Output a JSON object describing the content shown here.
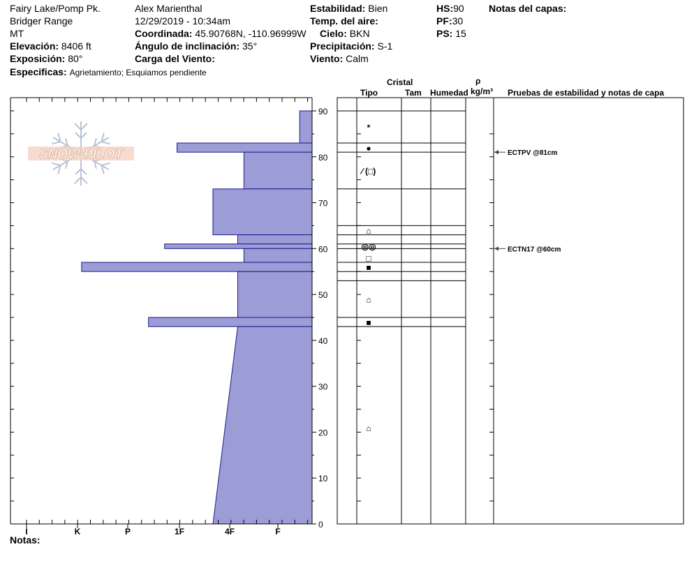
{
  "header": {
    "col1": {
      "location": "Fairy Lake/Pomp Pk.",
      "range": "Bridger Range",
      "state": "MT",
      "elevation_label": "Elevación:",
      "elevation_value": "8406 ft",
      "aspect_label": "Exposición:",
      "aspect_value": "80°",
      "specifics_label": "Especificas:",
      "specifics_value": "Agrietamiento; Esquiamos pendiente"
    },
    "col2": {
      "observer": "Alex Marienthal",
      "datetime": "12/29/2019 - 10:34am",
      "coord_label": "Coordinada:",
      "coord_value": "45.90768N, -110.96999W",
      "slope_label": "Ángulo de inclinación:",
      "slope_value": "35°",
      "wind_load_label": "Carga del Viento:"
    },
    "col3": {
      "stability_label": "Estabilidad:",
      "stability_value": "Bien",
      "air_temp_label": "Temp. del aire:",
      "sky_label": "Cielo:",
      "sky_value": "BKN",
      "precip_label": "Precipitación:",
      "precip_value": "S-1",
      "wind_label": "Viento:",
      "wind_value": "Calm"
    },
    "col4": {
      "hs_label": "HS:",
      "hs_value": "90",
      "pf_label": "PF:",
      "pf_value": "30",
      "ps_label": "PS:",
      "ps_value": "15"
    },
    "layer_notes_label": "Notas del capas:"
  },
  "logo_text": "SNOW PILOT",
  "notes_label": "Notas:",
  "table_headers": {
    "crystal": "Cristal",
    "type": "Tipo",
    "size": "Tam",
    "moisture": "Humedad",
    "rho": "ρ",
    "density_unit": "kg/m³",
    "tests": "Pruebas de estabilidad y notas de capa"
  },
  "chart_data": {
    "type": "snow_profile",
    "y_axis": {
      "range": [
        0,
        90
      ],
      "ticks": [
        0,
        10,
        20,
        30,
        40,
        50,
        60,
        70,
        80,
        90
      ],
      "unit": "cm"
    },
    "hardness_labels": [
      "I",
      "K",
      "P",
      "1F",
      "4F",
      "F"
    ],
    "hardness_profile": [
      {
        "top": 90,
        "bottom": 83,
        "hardness": 0.5
      },
      {
        "top": 83,
        "bottom": 81,
        "hardness": 5.45
      },
      {
        "top": 81,
        "bottom": 73,
        "hardness": 2.75
      },
      {
        "top": 73,
        "bottom": 63,
        "hardness": 4.0
      },
      {
        "top": 63,
        "bottom": 61,
        "hardness": 3.0
      },
      {
        "top": 61,
        "bottom": 60,
        "hardness": 5.95
      },
      {
        "top": 60,
        "bottom": 57,
        "hardness": 2.75
      },
      {
        "top": 57,
        "bottom": 55,
        "hardness": 9.3
      },
      {
        "top": 55,
        "bottom": 45,
        "hardness": 3.0
      },
      {
        "top": 45,
        "bottom": 43,
        "hardness": 6.6
      },
      {
        "top": 43,
        "bottom": 0,
        "hardness_top": 3.0,
        "hardness_bottom": 4.0
      }
    ],
    "layer_boundaries": [
      90,
      83,
      81,
      73,
      65,
      63,
      61,
      60,
      57,
      55,
      53,
      45,
      43
    ],
    "grain_types": [
      {
        "depth": 86.5,
        "symbol": "*"
      },
      {
        "depth": 82.0,
        "symbol": "●"
      },
      {
        "depth": 77.0,
        "symbol": "⁄ (□)"
      },
      {
        "depth": 64.0,
        "symbol": "⌂"
      },
      {
        "depth": 60.6,
        "symbol": "◎◎"
      },
      {
        "depth": 58.0,
        "symbol": "□"
      },
      {
        "depth": 56.0,
        "symbol": "■"
      },
      {
        "depth": 49.0,
        "symbol": "⌂"
      },
      {
        "depth": 44.0,
        "symbol": "■"
      },
      {
        "depth": 21.0,
        "symbol": "⌂"
      }
    ],
    "stability_tests": [
      {
        "depth": 81,
        "label": "ECTPV @81cm"
      },
      {
        "depth": 60,
        "label": "ECTN17 @60cm"
      }
    ]
  }
}
